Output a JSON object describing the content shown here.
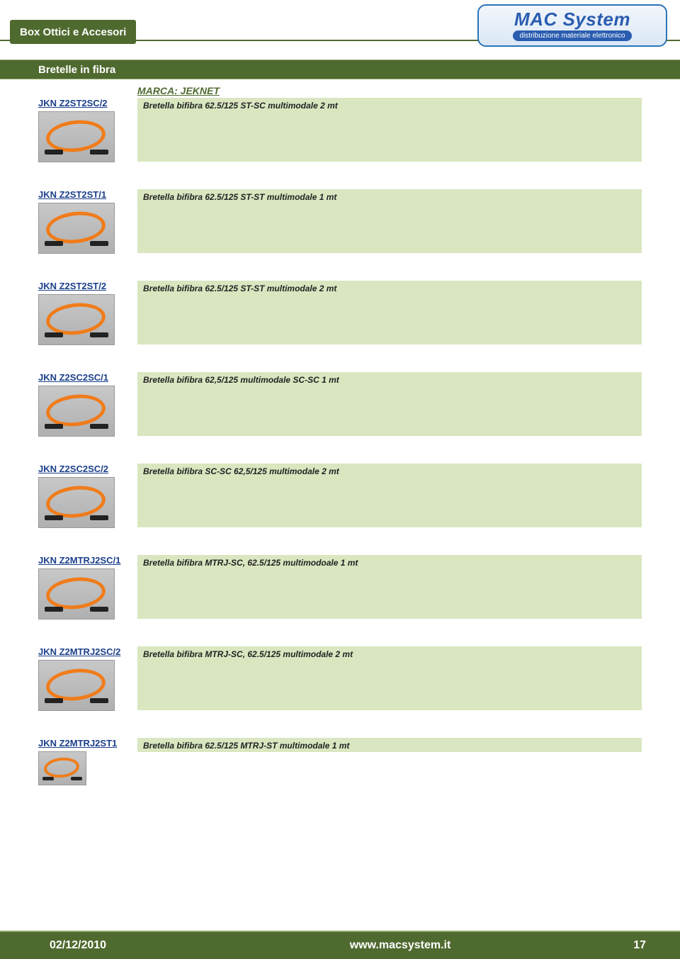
{
  "header": {
    "category": "Box Ottici e Accesori"
  },
  "logo": {
    "main": "MAC System",
    "sub": "distribuzione materiale elettronico"
  },
  "section": {
    "title": "Bretelle in fibra"
  },
  "marca_label": "MARCA: JEKNET",
  "items": [
    {
      "code": "JKN Z2ST2SC/2",
      "desc": "Bretella bifibra 62.5/125 ST-SC multimodale 2 mt"
    },
    {
      "code": "JKN Z2ST2ST/1",
      "desc": "Bretella bifibra 62.5/125 ST-ST multimodale 1 mt"
    },
    {
      "code": "JKN Z2ST2ST/2",
      "desc": "Bretella bifibra 62.5/125 ST-ST multimodale 2 mt"
    },
    {
      "code": "JKN Z2SC2SC/1",
      "desc": "Bretella bifibra 62,5/125 multimodale SC-SC 1 mt"
    },
    {
      "code": "JKN Z2SC2SC/2",
      "desc": "Bretella bifibra SC-SC  62,5/125 multimodale 2 mt"
    },
    {
      "code": "JKN Z2MTRJ2SC/1",
      "desc": "Bretella bifibra MTRJ-SC, 62.5/125  multimodoale 1 mt"
    },
    {
      "code": "JKN Z2MTRJ2SC/2",
      "desc": "Bretella bifibra MTRJ-SC, 62.5/125 multimodale  2 mt"
    },
    {
      "code": "JKN Z2MTRJ2ST1",
      "desc": "Bretella bifibra 62.5/125 MTRJ-ST multimodale 1 mt"
    }
  ],
  "footer": {
    "date": "02/12/2010",
    "url": "www.macsystem.it",
    "page": "17"
  },
  "colors": {
    "brand_green": "#4f6a2f",
    "band_green": "#d9e6c0",
    "code_blue": "#1a3f8a",
    "cable_orange": "#f07c1a"
  }
}
